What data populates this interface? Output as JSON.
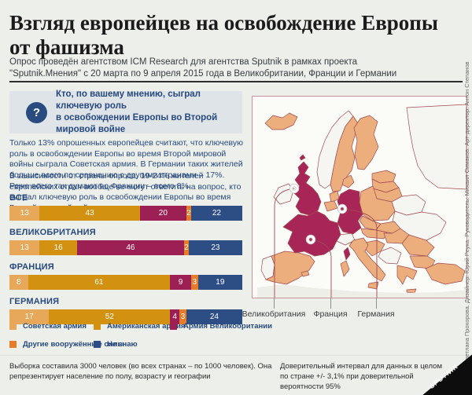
{
  "header": {
    "title_lines": [
      "Взгляд европейцев на освобождение Европы",
      "от фашизма"
    ],
    "subtitle_lines": [
      "Опрос проведён агентством ICM Research для агентства Sputnik в рамках проекта",
      "\"Sputnik.Мнения\" с 20 марта по 9 апреля 2015 года в Великобритании, Франции и Германии"
    ]
  },
  "question": {
    "icon": "question-mark",
    "lines": [
      "Кто, по вашему мнению, сыграл ключевую роль",
      "в освобождении Европы во Второй мировой войне"
    ]
  },
  "paragraphs": [
    "Только 13% опрошенных европейцев считают, что ключевую роль в освобождении Европы во время Второй мировой войны сыграла Советская армия. В Германии таких жителей больше всего по сравнению с другими странами – 17%. Реже всего так думают во Франции – всего 8%",
    "В зависимости от страны опроса, 19-24% жителей европейских стран вообще не могут ответить на вопрос, кто сыграл ключевую роль в освобождении Европы во время Второй мировой войны"
  ],
  "chart_data": {
    "type": "bar",
    "stacked": true,
    "orientation": "horizontal",
    "unit": "%",
    "categories": [
      "ВСЕ",
      "ВЕЛИКОБРИТАНИЯ",
      "ФРАНЦИЯ",
      "ГЕРМАНИЯ"
    ],
    "series": [
      {
        "name": "Советская армия",
        "color": "#e7a85a",
        "values": [
          13,
          13,
          8,
          17
        ]
      },
      {
        "name": "Американская армия",
        "color": "#d29110",
        "values": [
          43,
          16,
          61,
          52
        ]
      },
      {
        "name": "Армия Великобритании",
        "color": "#9c2053",
        "values": [
          20,
          46,
          9,
          4
        ]
      },
      {
        "name": "Другие вооружённые силы",
        "color": "#e87b27",
        "values": [
          2,
          2,
          3,
          3
        ]
      },
      {
        "name": "Не знаю",
        "color": "#2d4d85",
        "values": [
          22,
          23,
          19,
          24
        ]
      }
    ],
    "xlim": [
      0,
      100
    ],
    "legend_position": "bottom"
  },
  "map": {
    "labels": [
      "Великобритания",
      "Франция",
      "Германия"
    ],
    "colors": {
      "highlighted": "#a82558",
      "other": "#ecae7d",
      "neutral": "#f5f6f2",
      "landmass_far": "#eceee7"
    }
  },
  "footnotes": {
    "left": "Выборка составила 3000 человек (во всех странах – по 1000 человек). Она репрезентирует население по полу, возрасту и географии",
    "right": "Доверительный интервал для данных в целом по стране +/- 3,1% при доверительной вероятности 95%"
  },
  "credits": "Редактор: Светлана Прохорова. Дизайнер: Юрий Реука. Руководитель: Михаил Симаков. Арт-директор: Антон Степанов",
  "brand": "SPUTNIK"
}
